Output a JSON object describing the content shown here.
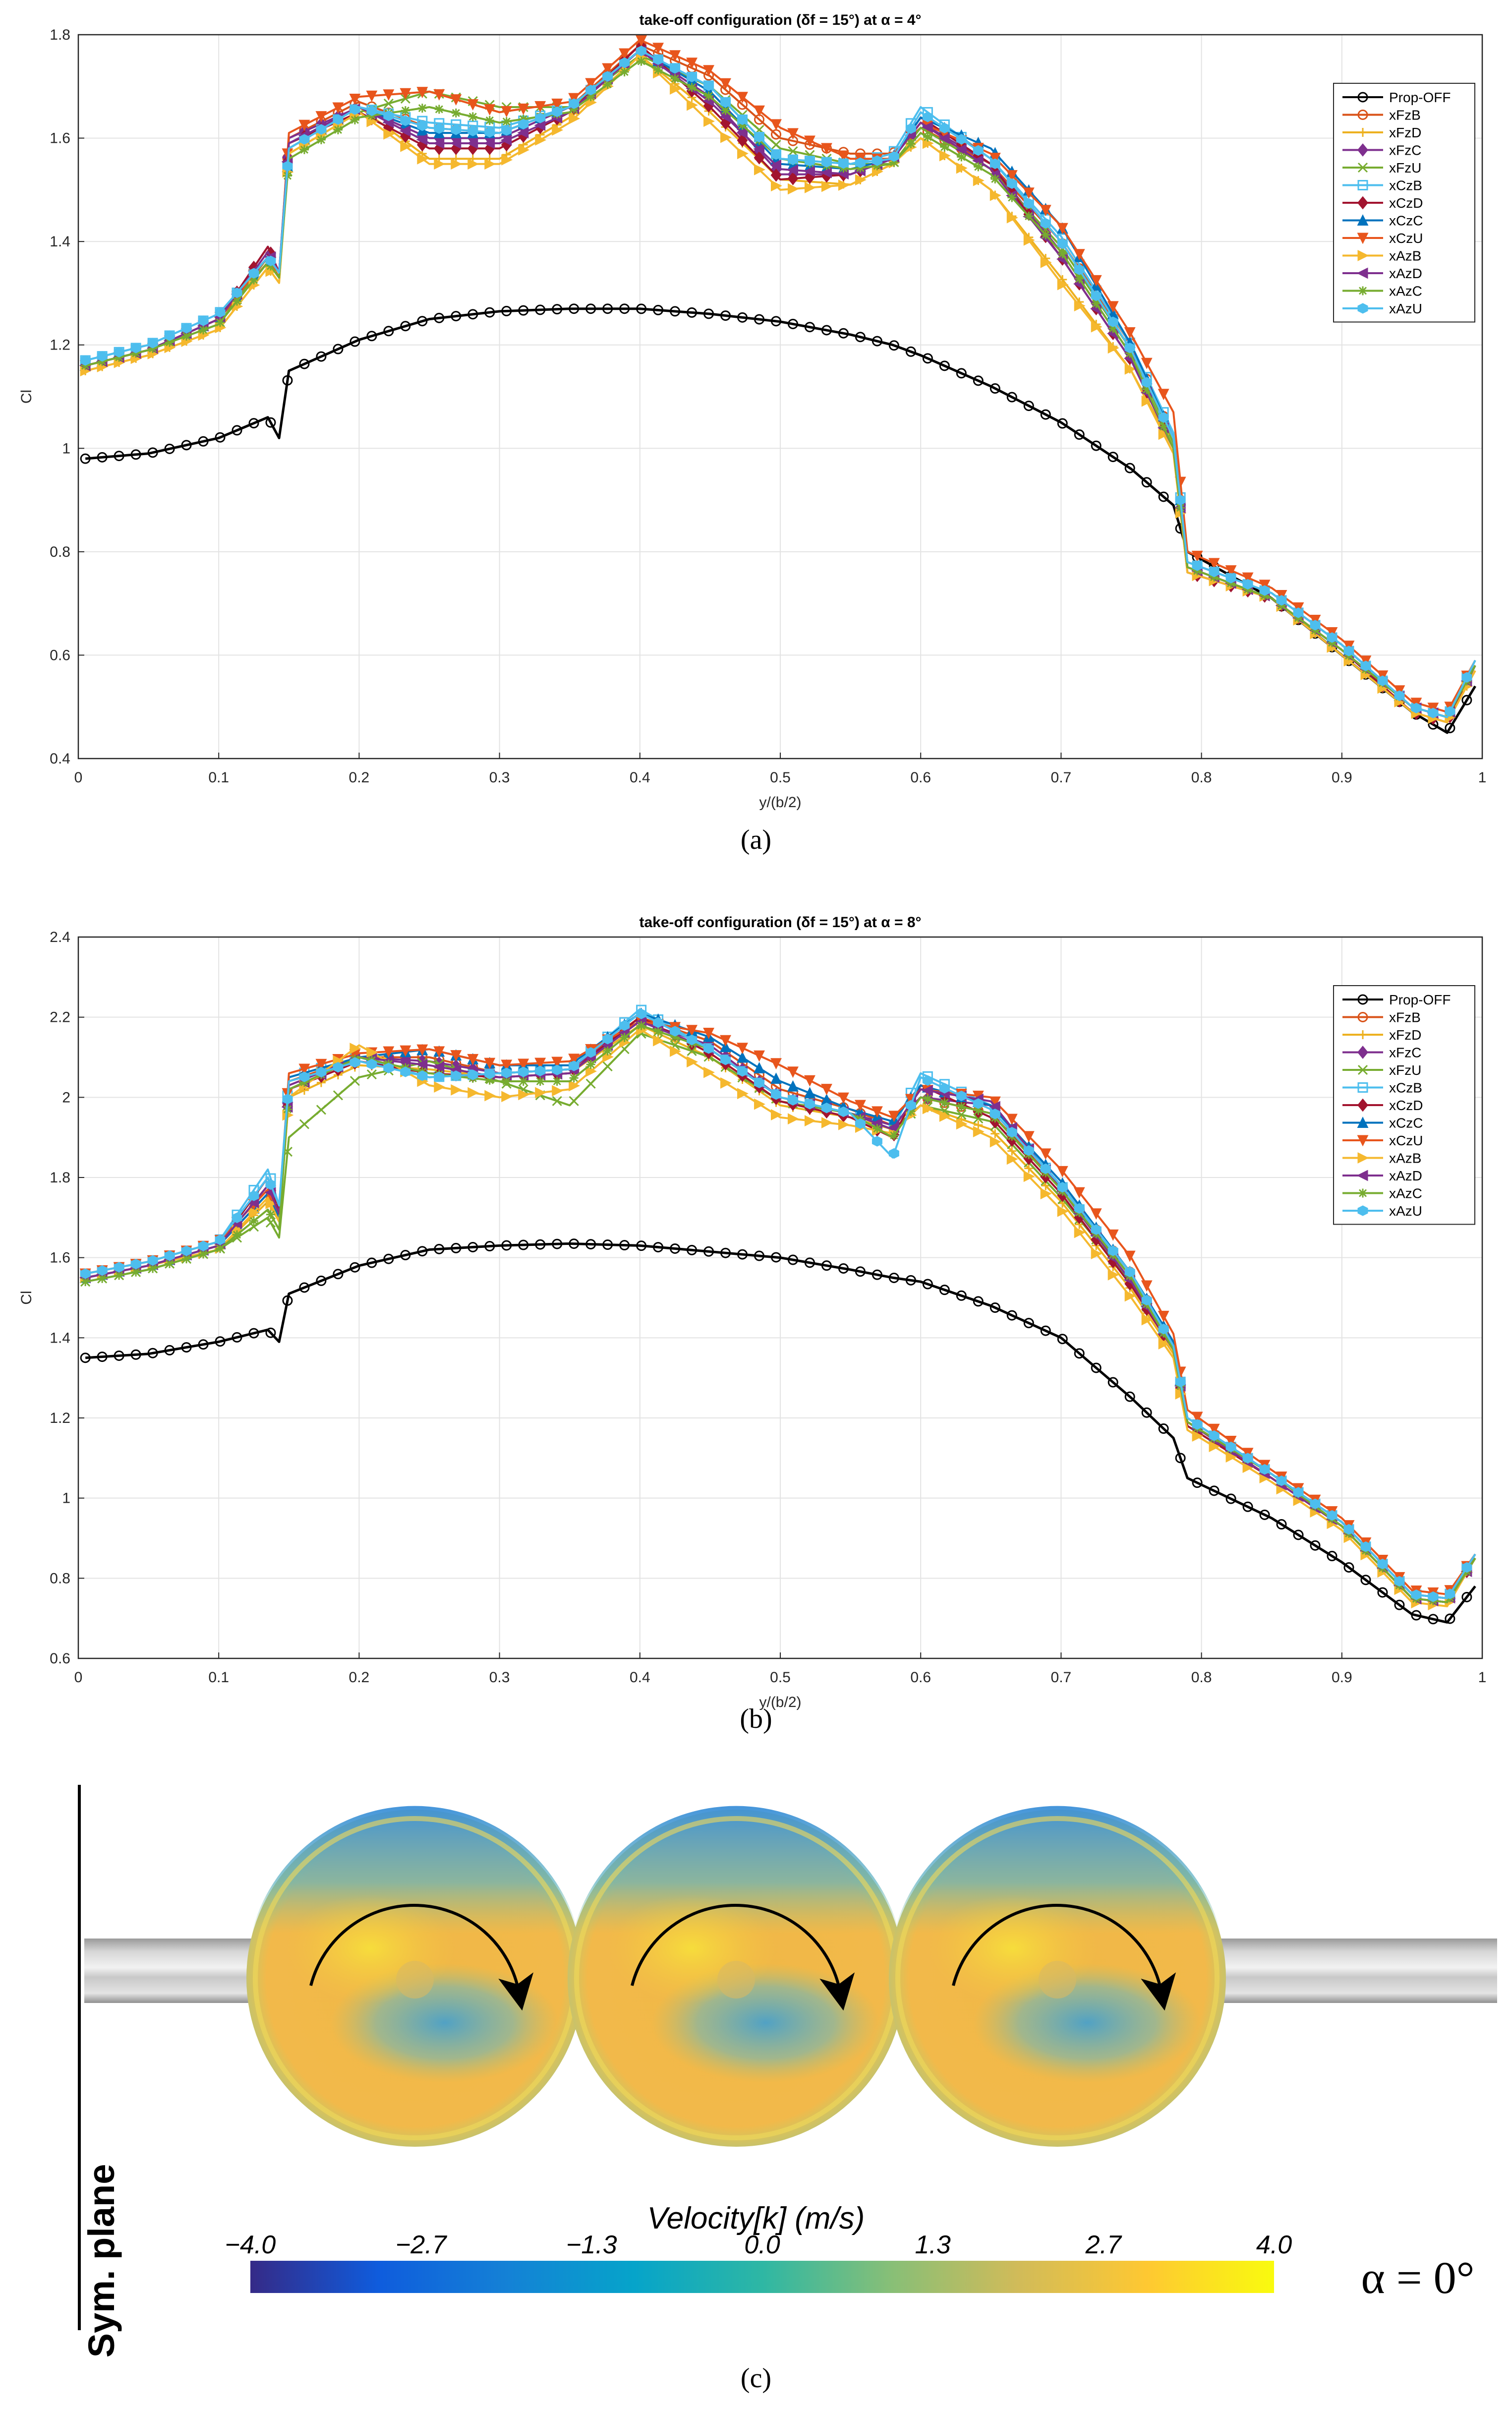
{
  "series_style": [
    {
      "name": "Prop-OFF",
      "color": "#000000",
      "marker": "o"
    },
    {
      "name": "xFzB",
      "color": "#D95319",
      "marker": "o"
    },
    {
      "name": "xFzD",
      "color": "#EDB120",
      "marker": "+"
    },
    {
      "name": "xFzC",
      "color": "#7E2F8E",
      "marker": "d"
    },
    {
      "name": "xFzU",
      "color": "#77AC30",
      "marker": "x"
    },
    {
      "name": "xCzB",
      "color": "#4DBEEE",
      "marker": "s"
    },
    {
      "name": "xCzD",
      "color": "#A2142F",
      "marker": "d"
    },
    {
      "name": "xCzC",
      "color": "#0072BD",
      "marker": "^"
    },
    {
      "name": "xCzU",
      "color": "#E8551C",
      "marker": "v"
    },
    {
      "name": "xAzB",
      "color": "#F5B82E",
      "marker": ">"
    },
    {
      "name": "xAzD",
      "color": "#7E2F8E",
      "marker": "<"
    },
    {
      "name": "xAzC",
      "color": "#77AC30",
      "marker": "*"
    },
    {
      "name": "xAzU",
      "color": "#4DBEEE",
      "marker": "h"
    }
  ],
  "chart_data": [
    {
      "type": "line",
      "panel_label": "(a)",
      "title": "take-off configuration (δf = 15°) at α = 4°",
      "xlabel": "y/(b/2)",
      "ylabel": "Cl",
      "xlim": [
        0,
        1
      ],
      "ylim": [
        0.4,
        1.8
      ],
      "xticks": [
        "0",
        "0.1",
        "0.2",
        "0.3",
        "0.4",
        "0.5",
        "0.6",
        "0.7",
        "0.8",
        "0.9",
        "1"
      ],
      "yticks": [
        "0.4",
        "0.6",
        "0.8",
        "1",
        "1.2",
        "1.4",
        "1.6",
        "1.8"
      ],
      "grid": true,
      "legend_position": "top-right",
      "x": [
        0.005,
        0.05,
        0.1,
        0.135,
        0.143,
        0.15,
        0.2,
        0.25,
        0.3,
        0.35,
        0.4,
        0.45,
        0.5,
        0.55,
        0.58,
        0.6,
        0.65,
        0.7,
        0.75,
        0.78,
        0.79,
        0.85,
        0.9,
        0.95,
        0.975,
        0.995
      ],
      "series": [
        {
          "name": "Prop-OFF",
          "values": [
            0.98,
            0.99,
            1.02,
            1.06,
            1.02,
            1.15,
            1.21,
            1.25,
            1.265,
            1.27,
            1.27,
            1.26,
            1.245,
            1.22,
            1.2,
            1.18,
            1.12,
            1.05,
            0.96,
            0.89,
            0.8,
            0.71,
            0.6,
            0.49,
            0.45,
            0.54
          ]
        },
        {
          "name": "xFzB",
          "values": [
            1.16,
            1.19,
            1.25,
            1.36,
            1.33,
            1.6,
            1.67,
            1.62,
            1.61,
            1.66,
            1.78,
            1.72,
            1.6,
            1.57,
            1.57,
            1.62,
            1.55,
            1.4,
            1.2,
            1.02,
            0.78,
            0.72,
            0.62,
            0.5,
            0.48,
            0.58
          ]
        },
        {
          "name": "xFzD",
          "values": [
            1.15,
            1.18,
            1.23,
            1.35,
            1.32,
            1.58,
            1.66,
            1.56,
            1.56,
            1.64,
            1.76,
            1.65,
            1.52,
            1.51,
            1.55,
            1.6,
            1.5,
            1.33,
            1.15,
            1.0,
            0.76,
            0.71,
            0.6,
            0.49,
            0.47,
            0.57
          ]
        },
        {
          "name": "xFzC",
          "values": [
            1.16,
            1.19,
            1.25,
            1.39,
            1.34,
            1.6,
            1.66,
            1.6,
            1.6,
            1.66,
            1.77,
            1.68,
            1.53,
            1.53,
            1.56,
            1.63,
            1.55,
            1.38,
            1.18,
            1.0,
            0.77,
            0.71,
            0.61,
            0.5,
            0.48,
            0.58
          ]
        },
        {
          "name": "xFzU",
          "values": [
            1.16,
            1.19,
            1.24,
            1.37,
            1.33,
            1.57,
            1.65,
            1.69,
            1.66,
            1.66,
            1.76,
            1.7,
            1.58,
            1.55,
            1.55,
            1.62,
            1.54,
            1.39,
            1.19,
            1.01,
            0.77,
            0.71,
            0.61,
            0.5,
            0.48,
            0.58
          ]
        },
        {
          "name": "xCzB",
          "values": [
            1.17,
            1.2,
            1.26,
            1.37,
            1.34,
            1.58,
            1.66,
            1.63,
            1.62,
            1.66,
            1.77,
            1.7,
            1.56,
            1.55,
            1.57,
            1.66,
            1.56,
            1.41,
            1.2,
            1.03,
            0.78,
            0.72,
            0.62,
            0.5,
            0.48,
            0.59
          ]
        },
        {
          "name": "xCzD",
          "values": [
            1.16,
            1.19,
            1.25,
            1.39,
            1.34,
            1.59,
            1.65,
            1.58,
            1.58,
            1.65,
            1.78,
            1.66,
            1.52,
            1.53,
            1.56,
            1.64,
            1.55,
            1.37,
            1.17,
            1.0,
            0.76,
            0.71,
            0.61,
            0.49,
            0.47,
            0.58
          ]
        },
        {
          "name": "xCzC",
          "values": [
            1.16,
            1.19,
            1.25,
            1.37,
            1.33,
            1.58,
            1.66,
            1.61,
            1.61,
            1.66,
            1.77,
            1.69,
            1.55,
            1.54,
            1.56,
            1.64,
            1.58,
            1.43,
            1.2,
            1.02,
            0.78,
            0.72,
            0.62,
            0.5,
            0.48,
            0.58
          ]
        },
        {
          "name": "xCzU",
          "values": [
            1.16,
            1.19,
            1.25,
            1.37,
            1.33,
            1.61,
            1.68,
            1.69,
            1.65,
            1.67,
            1.79,
            1.73,
            1.62,
            1.56,
            1.56,
            1.63,
            1.57,
            1.43,
            1.22,
            1.07,
            0.8,
            0.73,
            0.63,
            0.51,
            0.49,
            0.59
          ]
        },
        {
          "name": "xAzB",
          "values": [
            1.15,
            1.18,
            1.23,
            1.35,
            1.32,
            1.57,
            1.65,
            1.55,
            1.55,
            1.63,
            1.76,
            1.63,
            1.5,
            1.51,
            1.55,
            1.6,
            1.5,
            1.32,
            1.15,
            0.99,
            0.76,
            0.71,
            0.6,
            0.49,
            0.47,
            0.57
          ]
        },
        {
          "name": "xAzD",
          "values": [
            1.16,
            1.19,
            1.25,
            1.38,
            1.34,
            1.59,
            1.66,
            1.59,
            1.59,
            1.65,
            1.77,
            1.67,
            1.54,
            1.53,
            1.56,
            1.63,
            1.54,
            1.37,
            1.17,
            1.0,
            0.77,
            0.71,
            0.61,
            0.5,
            0.48,
            0.58
          ]
        },
        {
          "name": "xAzC",
          "values": [
            1.16,
            1.19,
            1.24,
            1.36,
            1.33,
            1.56,
            1.64,
            1.66,
            1.63,
            1.65,
            1.75,
            1.68,
            1.56,
            1.54,
            1.55,
            1.61,
            1.53,
            1.38,
            1.18,
            1.0,
            0.77,
            0.71,
            0.61,
            0.5,
            0.48,
            0.58
          ]
        },
        {
          "name": "xAzU",
          "values": [
            1.17,
            1.2,
            1.26,
            1.37,
            1.34,
            1.58,
            1.66,
            1.62,
            1.61,
            1.66,
            1.77,
            1.7,
            1.56,
            1.55,
            1.56,
            1.65,
            1.56,
            1.4,
            1.19,
            1.02,
            0.78,
            0.72,
            0.62,
            0.5,
            0.48,
            0.59
          ]
        }
      ]
    },
    {
      "type": "line",
      "panel_label": "(b)",
      "title": "take-off configuration (δf = 15°) at α = 8°",
      "xlabel": "y/(b/2)",
      "ylabel": "Cl",
      "xlim": [
        0,
        1
      ],
      "ylim": [
        0.6,
        2.4
      ],
      "xticks": [
        "0",
        "0.1",
        "0.2",
        "0.3",
        "0.4",
        "0.5",
        "0.6",
        "0.7",
        "0.8",
        "0.9",
        "1"
      ],
      "yticks": [
        "0.6",
        "0.8",
        "1",
        "1.2",
        "1.4",
        "1.6",
        "1.8",
        "2",
        "2.2",
        "2.4"
      ],
      "grid": true,
      "legend_position": "top-right",
      "x": [
        0.005,
        0.05,
        0.1,
        0.135,
        0.143,
        0.15,
        0.2,
        0.25,
        0.3,
        0.35,
        0.4,
        0.45,
        0.5,
        0.55,
        0.58,
        0.6,
        0.65,
        0.7,
        0.75,
        0.78,
        0.79,
        0.85,
        0.9,
        0.95,
        0.975,
        0.995
      ],
      "series": [
        {
          "name": "Prop-OFF",
          "values": [
            1.35,
            1.36,
            1.39,
            1.42,
            1.39,
            1.51,
            1.58,
            1.62,
            1.63,
            1.635,
            1.63,
            1.615,
            1.6,
            1.57,
            1.55,
            1.54,
            1.48,
            1.4,
            1.25,
            1.15,
            1.05,
            0.95,
            0.84,
            0.71,
            0.69,
            0.78
          ]
        },
        {
          "name": "xFzB",
          "values": [
            1.55,
            1.58,
            1.63,
            1.76,
            1.7,
            2.04,
            2.1,
            2.1,
            2.06,
            2.07,
            2.2,
            2.14,
            2.02,
            1.97,
            1.93,
            2.0,
            1.96,
            1.78,
            1.56,
            1.38,
            1.2,
            1.06,
            0.94,
            0.76,
            0.75,
            0.85
          ]
        },
        {
          "name": "xFzD",
          "values": [
            1.55,
            1.58,
            1.62,
            1.74,
            1.69,
            2.0,
            2.08,
            2.07,
            2.05,
            2.06,
            2.18,
            2.1,
            1.98,
            1.95,
            1.92,
            1.98,
            1.92,
            1.74,
            1.52,
            1.36,
            1.18,
            1.05,
            0.93,
            0.75,
            0.74,
            0.85
          ]
        },
        {
          "name": "xFzC",
          "values": [
            1.55,
            1.58,
            1.63,
            1.78,
            1.71,
            2.03,
            2.1,
            2.09,
            2.06,
            2.07,
            2.19,
            2.13,
            2.0,
            1.96,
            1.93,
            2.0,
            1.98,
            1.78,
            1.55,
            1.38,
            1.19,
            1.06,
            0.93,
            0.75,
            0.74,
            0.85
          ]
        },
        {
          "name": "xFzU",
          "values": [
            1.54,
            1.57,
            1.62,
            1.7,
            1.65,
            1.9,
            2.05,
            2.09,
            2.04,
            1.98,
            2.16,
            2.1,
            1.99,
            1.96,
            1.92,
            1.98,
            1.94,
            1.75,
            1.54,
            1.37,
            1.19,
            1.06,
            0.93,
            0.75,
            0.74,
            0.85
          ]
        },
        {
          "name": "xCzB",
          "values": [
            1.56,
            1.59,
            1.64,
            1.82,
            1.73,
            2.05,
            2.1,
            2.05,
            2.06,
            2.07,
            2.22,
            2.12,
            2.0,
            1.96,
            1.92,
            2.06,
            1.98,
            1.78,
            1.55,
            1.38,
            1.2,
            1.06,
            0.94,
            0.76,
            0.75,
            0.86
          ]
        },
        {
          "name": "xCzD",
          "values": [
            1.55,
            1.58,
            1.63,
            1.8,
            1.72,
            2.02,
            2.09,
            2.06,
            2.05,
            2.06,
            2.2,
            2.11,
            1.99,
            1.95,
            1.9,
            2.03,
            1.95,
            1.76,
            1.53,
            1.37,
            1.18,
            1.05,
            0.93,
            0.75,
            0.74,
            0.85
          ]
        },
        {
          "name": "xCzC",
          "values": [
            1.55,
            1.58,
            1.63,
            1.76,
            1.7,
            2.05,
            2.1,
            2.12,
            2.08,
            2.08,
            2.21,
            2.15,
            2.04,
            1.97,
            1.94,
            2.03,
            1.98,
            1.79,
            1.56,
            1.39,
            1.2,
            1.06,
            0.94,
            0.76,
            0.75,
            0.86
          ]
        },
        {
          "name": "xCzU",
          "values": [
            1.56,
            1.59,
            1.64,
            1.77,
            1.71,
            2.06,
            2.11,
            2.12,
            2.08,
            2.09,
            2.19,
            2.16,
            2.08,
            1.99,
            1.95,
            2.02,
            2.0,
            1.82,
            1.6,
            1.41,
            1.22,
            1.07,
            0.95,
            0.77,
            0.76,
            0.86
          ]
        },
        {
          "name": "xAzB",
          "values": [
            1.55,
            1.58,
            1.62,
            1.75,
            1.69,
            2.0,
            2.13,
            2.03,
            2.0,
            2.02,
            2.17,
            2.06,
            1.95,
            1.93,
            1.91,
            1.98,
            1.9,
            1.72,
            1.5,
            1.35,
            1.17,
            1.04,
            0.92,
            0.74,
            0.73,
            0.85
          ]
        },
        {
          "name": "xAzD",
          "values": [
            1.55,
            1.58,
            1.63,
            1.78,
            1.71,
            2.02,
            2.1,
            2.08,
            2.05,
            2.06,
            2.19,
            2.12,
            2.0,
            1.96,
            1.92,
            2.02,
            1.99,
            1.77,
            1.54,
            1.37,
            1.19,
            1.05,
            0.93,
            0.75,
            0.74,
            0.85
          ]
        },
        {
          "name": "xAzC",
          "values": [
            1.54,
            1.57,
            1.62,
            1.72,
            1.67,
            2.02,
            2.1,
            2.06,
            2.04,
            2.04,
            2.18,
            2.12,
            2.0,
            1.96,
            1.9,
            2.0,
            1.96,
            1.77,
            1.55,
            1.37,
            1.19,
            1.06,
            0.93,
            0.75,
            0.74,
            0.85
          ]
        },
        {
          "name": "xAzU",
          "values": [
            1.56,
            1.59,
            1.64,
            1.8,
            1.73,
            2.04,
            2.09,
            2.05,
            2.06,
            2.07,
            2.21,
            2.12,
            2.0,
            1.96,
            1.85,
            2.05,
            1.97,
            1.78,
            1.56,
            1.38,
            1.2,
            1.06,
            0.94,
            0.76,
            0.75,
            0.86
          ]
        }
      ]
    },
    {
      "type": "heatmap",
      "panel_label": "(c)",
      "colorbar_title": "Velocity[k] (m/s)",
      "colorbar_ticks": [
        "−4.0",
        "−2.7",
        "−1.3",
        "0.0",
        "1.3",
        "2.7",
        "4.0"
      ],
      "colorbar_range": [
        -4.0,
        4.0
      ],
      "colormap": [
        "#352a87",
        "#0f5cdd",
        "#1481d6",
        "#06a4ca",
        "#2eb7a4",
        "#87bf77",
        "#d1bb59",
        "#fec832",
        "#f9fb0e"
      ],
      "annotation_left": "Sym. plane",
      "annotation_right": "α = 0°",
      "propellers": 3,
      "rotation": "clockwise"
    }
  ]
}
